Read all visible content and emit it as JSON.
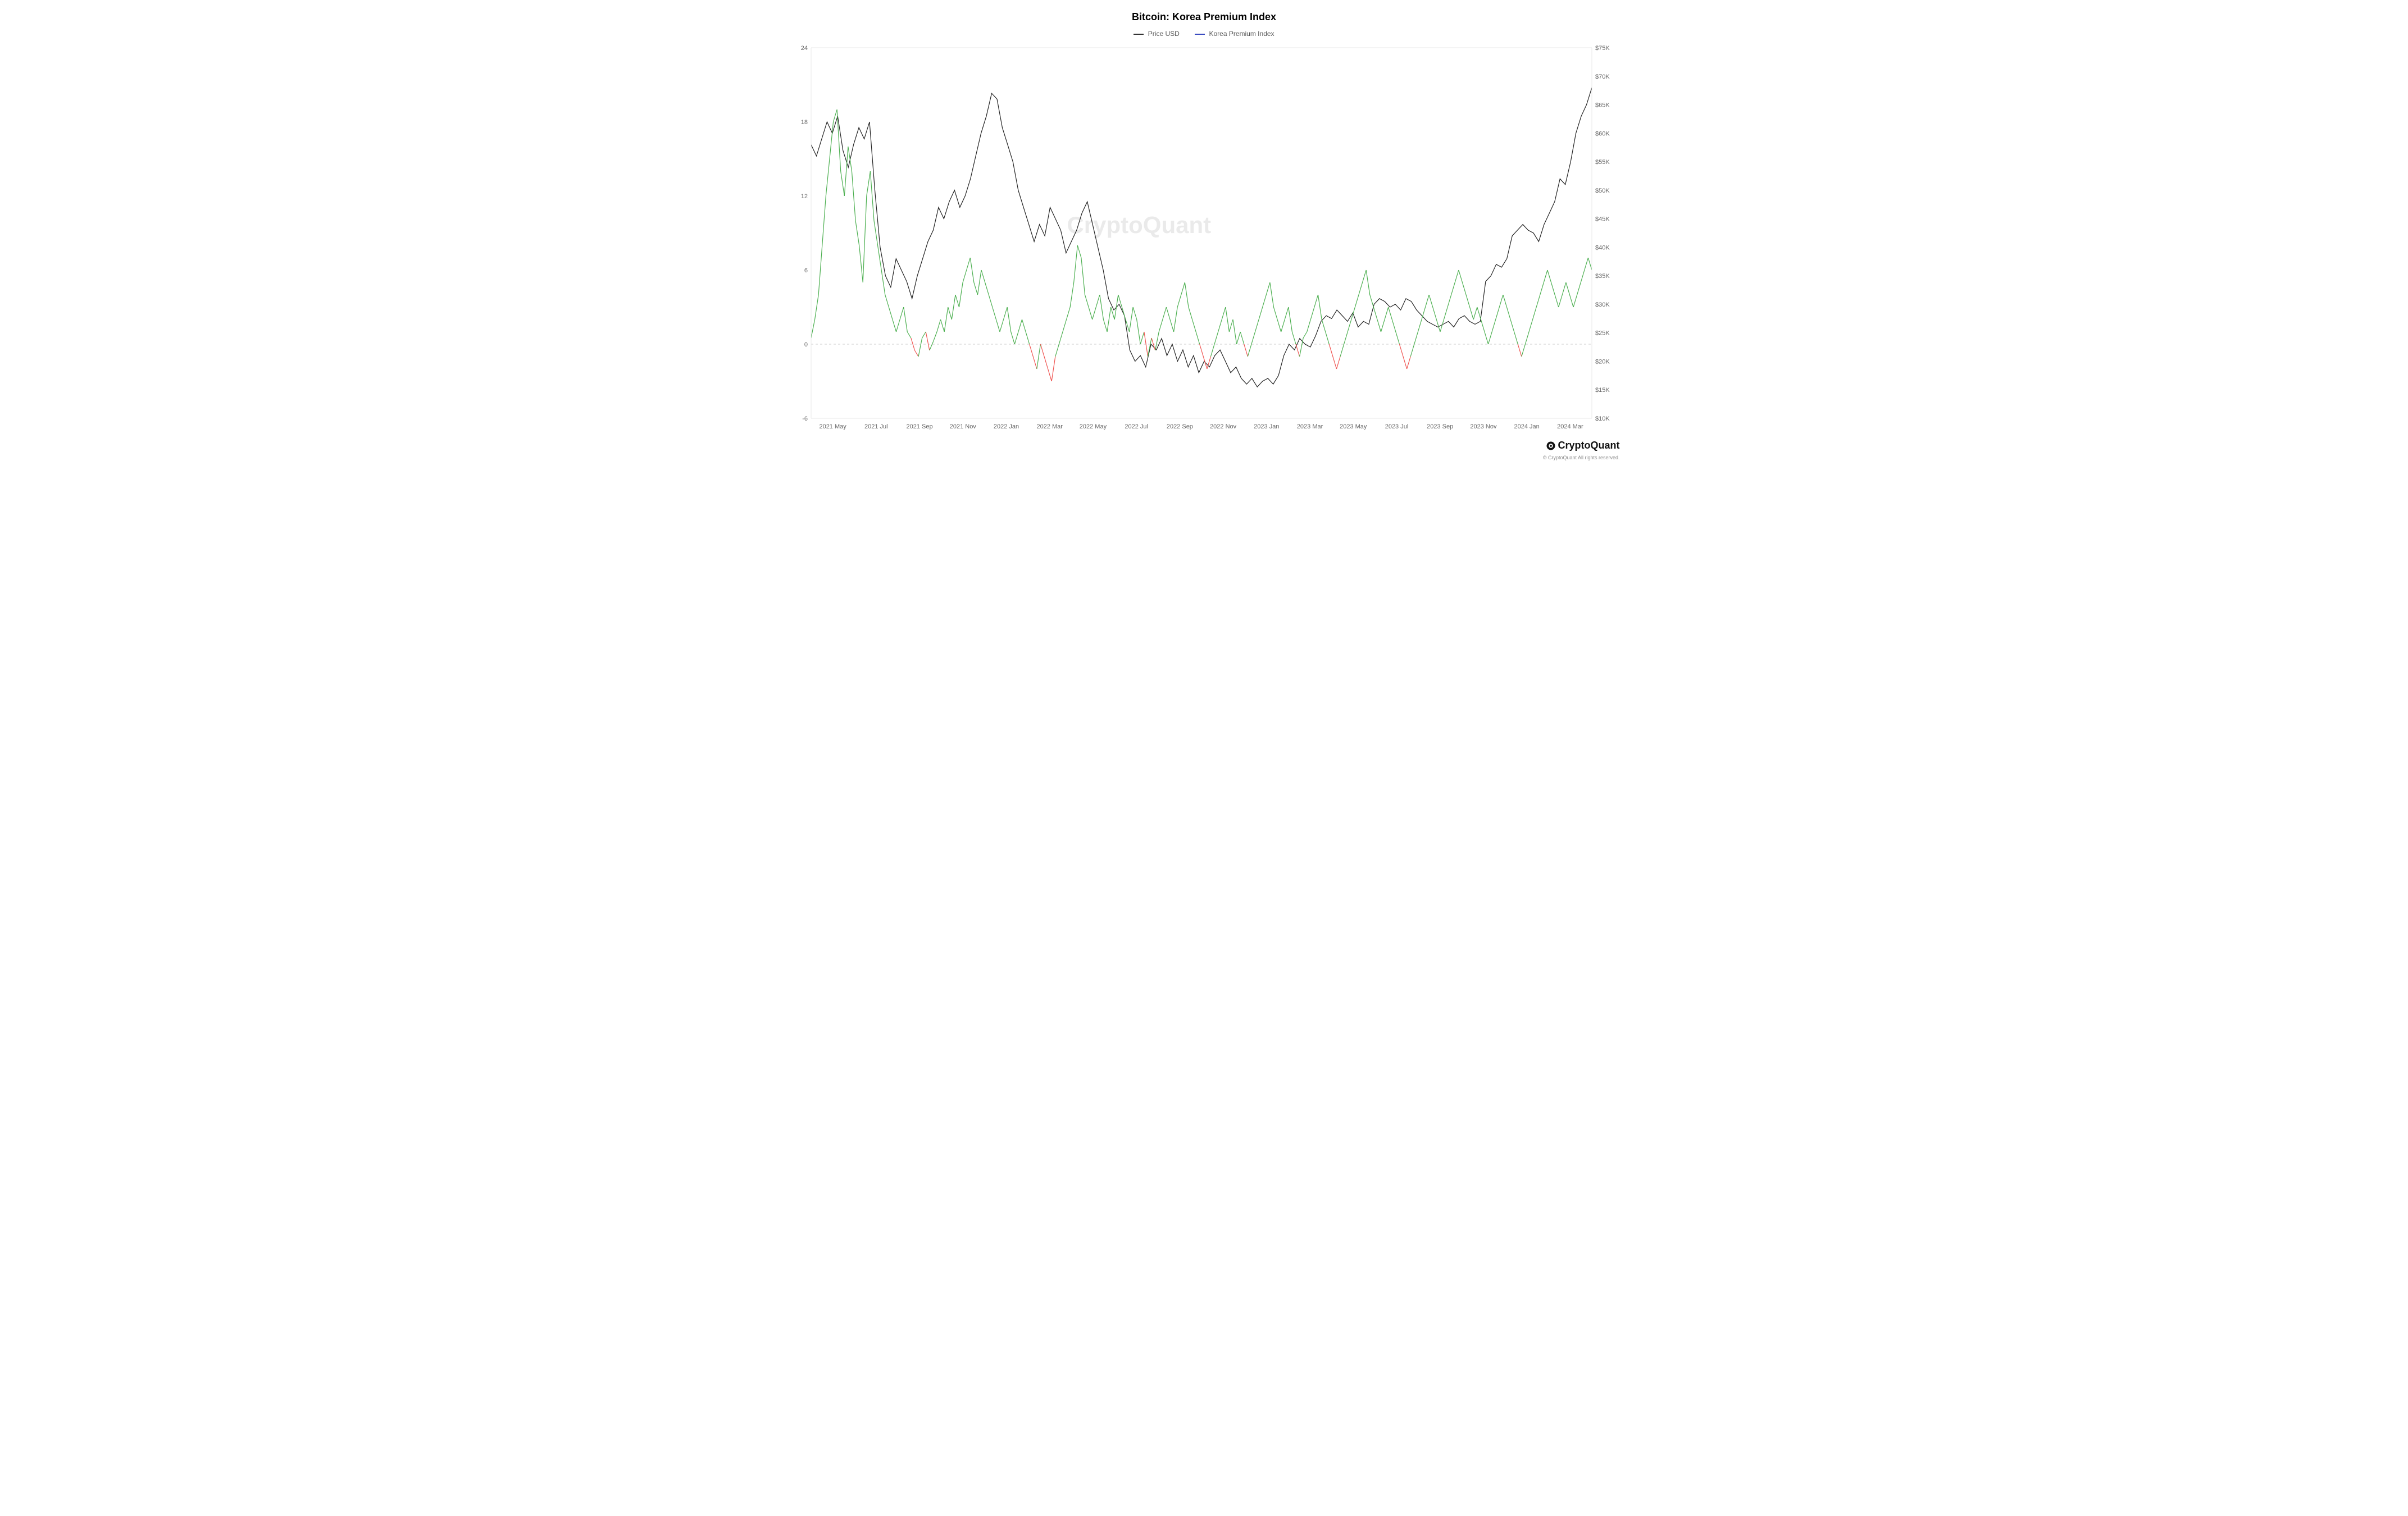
{
  "title": "Bitcoin: Korea Premium Index",
  "legend": {
    "series1": {
      "label": "Price USD",
      "color": "#333333"
    },
    "series2": {
      "label": "Korea Premium Index",
      "color": "#3b4cc0"
    }
  },
  "watermark": "CryptoQuant",
  "footer": {
    "brand": "CryptoQuant",
    "copyright": "© CryptoQuant All rights reserved."
  },
  "chart": {
    "type": "dual-axis-line",
    "background_color": "#ffffff",
    "grid_color": "#e8e8e8",
    "zero_line_color": "#cccccc",
    "x_axis": {
      "labels": [
        "2021 May",
        "2021 Jul",
        "2021 Sep",
        "2021 Nov",
        "2022 Jan",
        "2022 Mar",
        "2022 May",
        "2022 Jul",
        "2022 Sep",
        "2022 Nov",
        "2023 Jan",
        "2023 Mar",
        "2023 May",
        "2023 Jul",
        "2023 Sep",
        "2023 Nov",
        "2024 Jan",
        "2024 Mar"
      ],
      "fontsize": 11,
      "color": "#666666"
    },
    "left_axis": {
      "min": -6,
      "max": 24,
      "ticks": [
        -6,
        0,
        6,
        12,
        18,
        24
      ],
      "fontsize": 11,
      "color": "#666666"
    },
    "right_axis": {
      "min": 10000,
      "max": 75000,
      "ticks": [
        10000,
        15000,
        20000,
        25000,
        30000,
        35000,
        40000,
        45000,
        50000,
        55000,
        60000,
        65000,
        70000,
        75000
      ],
      "tick_labels": [
        "$10K",
        "$15K",
        "$20K",
        "$25K",
        "$30K",
        "$35K",
        "$40K",
        "$45K",
        "$50K",
        "$55K",
        "$60K",
        "$65K",
        "$70K",
        "$75K"
      ],
      "fontsize": 11,
      "color": "#666666"
    },
    "price_series": {
      "color": "#222222",
      "line_width": 1.2,
      "data": [
        58000,
        56000,
        59000,
        62000,
        60000,
        63000,
        57000,
        54000,
        58000,
        61000,
        59000,
        62000,
        50000,
        40000,
        35000,
        33000,
        38000,
        36000,
        34000,
        31000,
        35000,
        38000,
        41000,
        43000,
        47000,
        45000,
        48000,
        50000,
        47000,
        49000,
        52000,
        56000,
        60000,
        63000,
        67000,
        66000,
        61000,
        58000,
        55000,
        50000,
        47000,
        44000,
        41000,
        44000,
        42000,
        47000,
        45000,
        43000,
        39000,
        41000,
        43000,
        46000,
        48000,
        44000,
        40000,
        36000,
        31000,
        29000,
        30000,
        28000,
        22000,
        20000,
        21000,
        19000,
        23000,
        22000,
        24000,
        21000,
        23000,
        20000,
        22000,
        19000,
        21000,
        18000,
        20000,
        19000,
        21000,
        22000,
        20000,
        18000,
        19000,
        17000,
        16000,
        17000,
        15500,
        16500,
        17000,
        16000,
        17500,
        21000,
        23000,
        22000,
        24000,
        23000,
        22500,
        24500,
        27000,
        28000,
        27500,
        29000,
        28000,
        27000,
        28500,
        26000,
        27000,
        26500,
        30000,
        31000,
        30500,
        29500,
        30000,
        29000,
        31000,
        30500,
        29000,
        28000,
        27000,
        26500,
        26000,
        26500,
        27000,
        26000,
        27500,
        28000,
        27000,
        26500,
        27000,
        34000,
        35000,
        37000,
        36500,
        38000,
        42000,
        43000,
        44000,
        43000,
        42500,
        41000,
        44000,
        46000,
        48000,
        52000,
        51000,
        55000,
        60000,
        63000,
        65000,
        68000
      ]
    },
    "premium_series": {
      "color_positive": "#4caf50",
      "color_negative": "#ef5350",
      "line_width": 1.2,
      "data": [
        0.5,
        2,
        4,
        8,
        12,
        15,
        18,
        19,
        14,
        12,
        16,
        14,
        10,
        8,
        5,
        12,
        14,
        10,
        8,
        6,
        4,
        3,
        2,
        1,
        2,
        3,
        1,
        0.5,
        -0.5,
        -1,
        0.5,
        1,
        -0.5,
        0.2,
        1,
        2,
        1,
        3,
        2,
        4,
        3,
        5,
        6,
        7,
        5,
        4,
        6,
        5,
        4,
        3,
        2,
        1,
        2,
        3,
        1,
        0,
        1,
        2,
        1,
        0,
        -1,
        -2,
        0,
        -1,
        -2,
        -3,
        -1,
        0,
        1,
        2,
        3,
        5,
        8,
        7,
        4,
        3,
        2,
        3,
        4,
        2,
        1,
        3,
        2,
        4,
        3,
        2,
        1,
        3,
        2,
        0,
        1,
        -1,
        0.5,
        -0.5,
        1,
        2,
        3,
        2,
        1,
        3,
        4,
        5,
        3,
        2,
        1,
        0,
        -1,
        -2,
        -1,
        0,
        1,
        2,
        3,
        1,
        2,
        0,
        1,
        0,
        -1,
        0,
        1,
        2,
        3,
        4,
        5,
        3,
        2,
        1,
        2,
        3,
        1,
        0,
        -1,
        0.5,
        1,
        2,
        3,
        4,
        2,
        1,
        0,
        -1,
        -2,
        -1,
        0,
        1,
        2,
        3,
        4,
        5,
        6,
        4,
        3,
        2,
        1,
        2,
        3,
        2,
        1,
        0,
        -1,
        -2,
        -1,
        0,
        1,
        2,
        3,
        4,
        3,
        2,
        1,
        2,
        3,
        4,
        5,
        6,
        5,
        4,
        3,
        2,
        3,
        2,
        1,
        0,
        1,
        2,
        3,
        4,
        3,
        2,
        1,
        0,
        -1,
        0,
        1,
        2,
        3,
        4,
        5,
        6,
        5,
        4,
        3,
        4,
        5,
        4,
        3,
        4,
        5,
        6,
        7,
        6
      ]
    }
  }
}
